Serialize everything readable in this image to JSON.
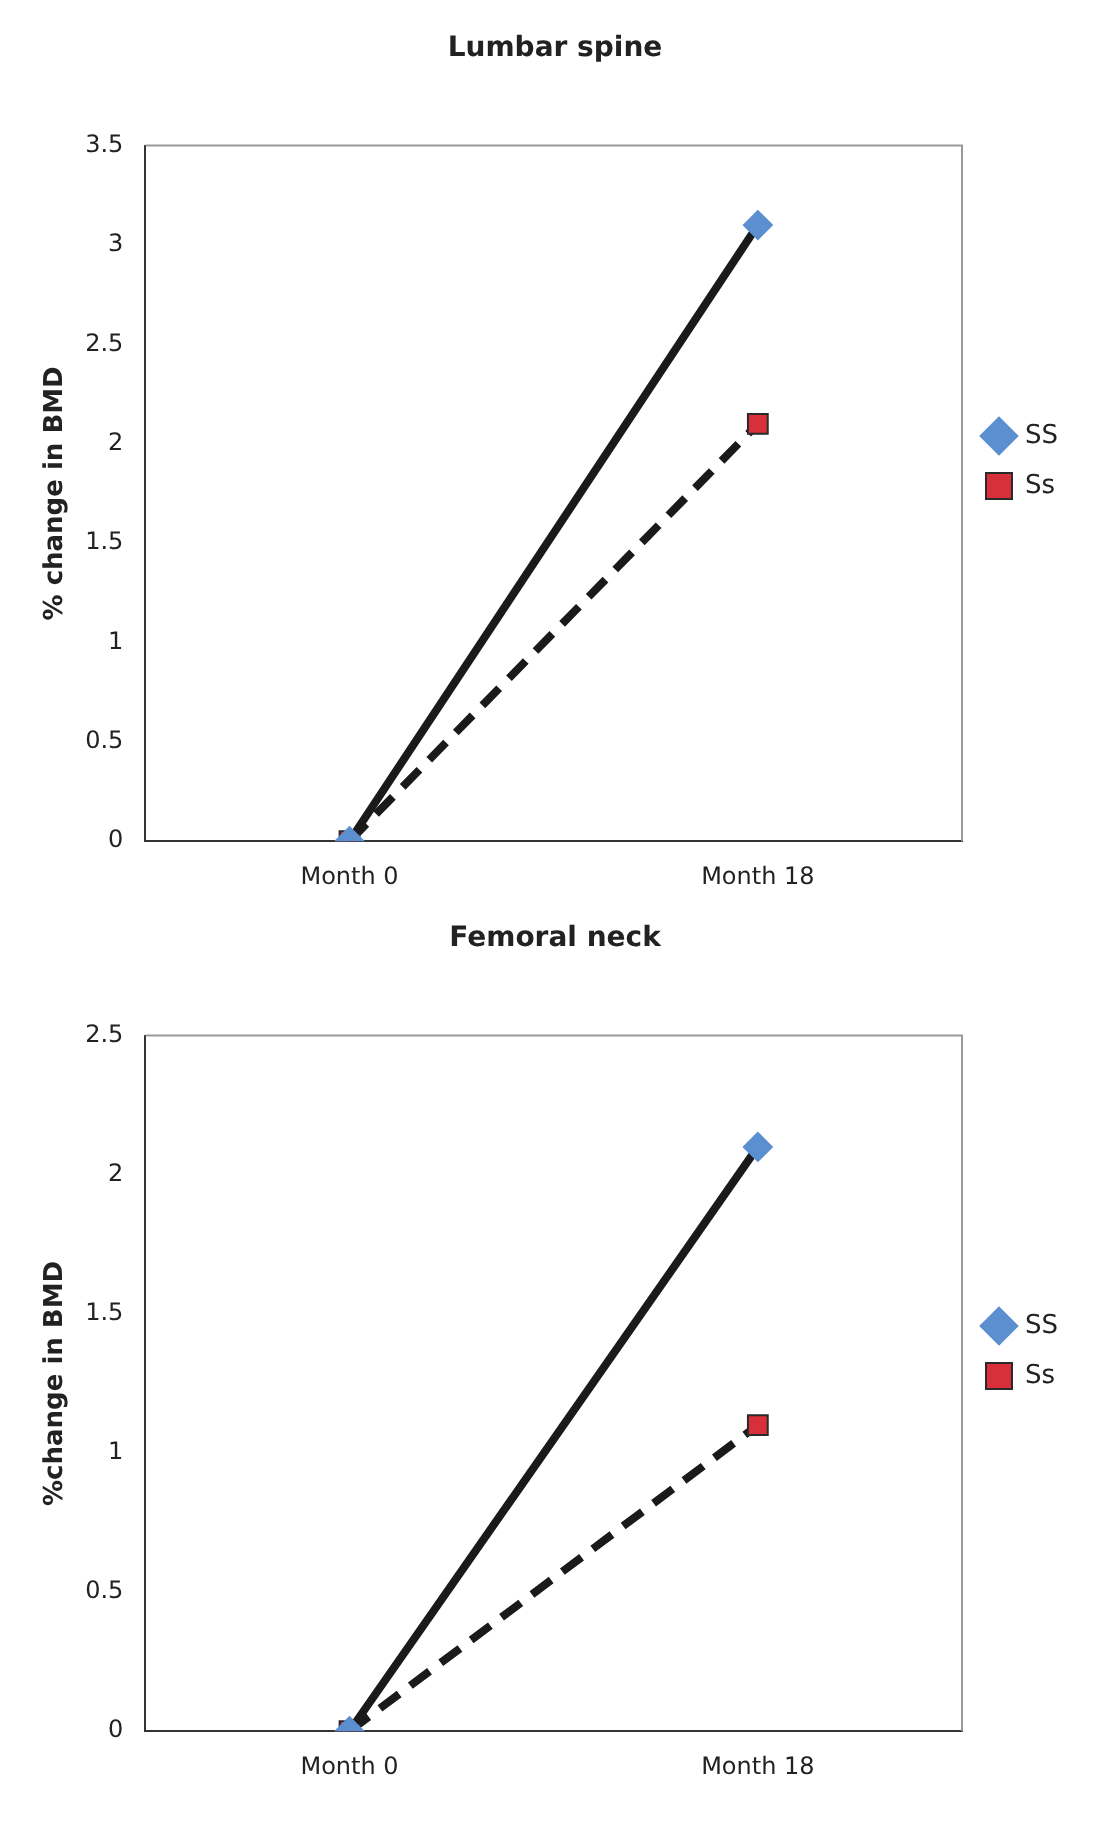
{
  "chart_data": [
    {
      "type": "line",
      "title": "Lumbar spine",
      "ylabel": "% change in BMD",
      "categories": [
        "Month 0",
        "Month 18"
      ],
      "series": [
        {
          "name": "SS",
          "color": "#1a1a1a",
          "colors": [
            "#5b8fd0",
            "#5b8fd0"
          ],
          "marker": "diamond",
          "line_style": "solid",
          "values": [
            0,
            3.1
          ]
        },
        {
          "name": "Ss",
          "color": "#1a1a1a",
          "colors": [
            "#d8303a",
            "#d8303a"
          ],
          "marker": "square",
          "line_style": "dashed",
          "values": [
            0,
            2.1
          ]
        }
      ],
      "ylim": [
        0,
        3.5
      ],
      "yticks": [
        0,
        0.5,
        1,
        1.5,
        2,
        2.5,
        3,
        3.5
      ],
      "grid": false,
      "legend": "right"
    },
    {
      "type": "line",
      "title": "Femoral neck",
      "ylabel": "%change in BMD",
      "categories": [
        "Month 0",
        "Month 18"
      ],
      "series": [
        {
          "name": "SS",
          "color": "#1a1a1a",
          "colors": [
            "#5b8fd0",
            "#5b8fd0"
          ],
          "marker": "diamond",
          "line_style": "solid",
          "values": [
            0,
            2.1
          ]
        },
        {
          "name": "Ss",
          "color": "#1a1a1a",
          "colors": [
            "#d8303a",
            "#d8303a"
          ],
          "marker": "square",
          "line_style": "dashed",
          "values": [
            0,
            1.1
          ]
        }
      ],
      "ylim": [
        0,
        2.5
      ],
      "yticks": [
        0,
        0.5,
        1,
        1.5,
        2,
        2.5
      ],
      "grid": false,
      "legend": "right"
    }
  ]
}
